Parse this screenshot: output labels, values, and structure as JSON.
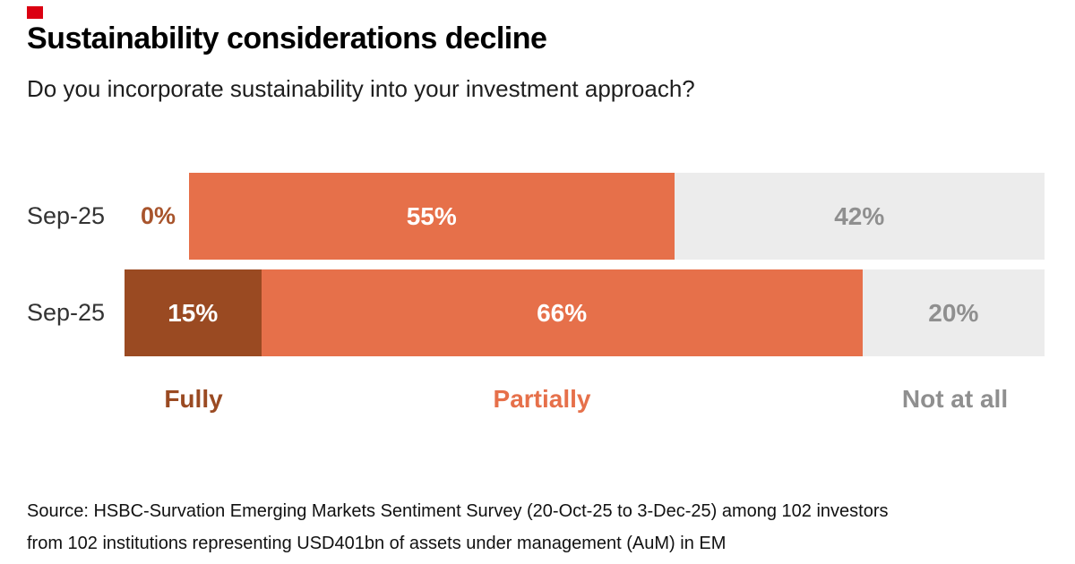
{
  "brand": {
    "mark_color": "#DB0011"
  },
  "header": {
    "title": "Sustainability considerations decline",
    "subtitle": "Do you incorporate sustainability into your investment approach?"
  },
  "colors": {
    "fully": "#9A4A22",
    "partially": "#E6704A",
    "not_at_all": "#ECECEC",
    "label_on_dark": "#FFFFFF",
    "label_muted": "#8F8F8F",
    "zero_label": "#A8542C"
  },
  "chart_data": {
    "type": "bar",
    "orientation": "horizontal-stacked",
    "unit": "%",
    "title": "Sustainability considerations decline",
    "subtitle": "Do you incorporate sustainability into your investment approach?",
    "categories": [
      "Sep-25",
      "Sep-25"
    ],
    "series": [
      {
        "name": "Fully",
        "values": [
          0,
          15
        ]
      },
      {
        "name": "Partially",
        "values": [
          55,
          66
        ]
      },
      {
        "name": "Not at all",
        "values": [
          42,
          20
        ]
      }
    ],
    "rows": [
      {
        "period": "Sep-25",
        "segments": [
          {
            "series": "fully",
            "value": 0,
            "label": "0%"
          },
          {
            "series": "partially",
            "value": 55,
            "label": "55%"
          },
          {
            "series": "not_at_all",
            "value": 42,
            "label": "42%"
          }
        ]
      },
      {
        "period": "Sep-25",
        "segments": [
          {
            "series": "fully",
            "value": 15,
            "label": "15%"
          },
          {
            "series": "partially",
            "value": 66,
            "label": "66%"
          },
          {
            "series": "not_at_all",
            "value": 20,
            "label": "20%"
          }
        ]
      }
    ],
    "legend": [
      {
        "label": "Fully",
        "series": "fully"
      },
      {
        "label": "Partially",
        "series": "partially"
      },
      {
        "label": "Not at all",
        "series": "not_at_all"
      }
    ],
    "legend_position": "bottom",
    "grid": false
  },
  "footer": {
    "source_line1": "Source: HSBC-Survation Emerging Markets Sentiment Survey (20-Oct-25 to 3-Dec-25) among 102 investors",
    "source_line2": "from 102 institutions representing USD401bn of assets under management (AuM) in EM"
  }
}
